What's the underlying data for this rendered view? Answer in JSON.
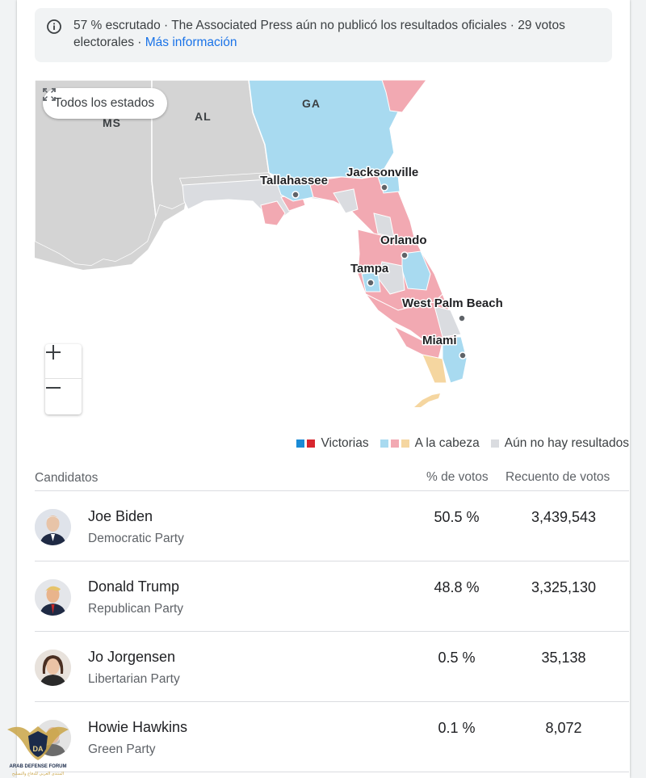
{
  "notice": {
    "text": "57 % escrutado · The Associated Press aún no publicó los resultados oficiales · 29 votos electorales · ",
    "link": "Más información",
    "icon": "info-icon"
  },
  "map": {
    "all_states_label": "Todos los estados",
    "states": [
      "MS",
      "AL",
      "GA"
    ],
    "cities": [
      "Tallahassee",
      "Jacksonville",
      "Orlando",
      "Tampa",
      "West Palm Beach",
      "Miami"
    ],
    "colors": {
      "dem_win": "#1a8bd6",
      "rep_win": "#d8262e",
      "dem_lead": "#a8daf0",
      "rep_lead": "#f2a9b2",
      "other_lead": "#f5d6a0",
      "no_results": "#dadce0",
      "neighbor": "#d4d4d4"
    }
  },
  "legend": {
    "wins": "Victorias",
    "leading": "A la cabeza",
    "no_results": "Aún no hay resultados"
  },
  "table": {
    "headers": {
      "candidates": "Candidatos",
      "pct": "% de votos",
      "votes": "Recuento de votos"
    },
    "rows": [
      {
        "name": "Joe Biden",
        "party": "Democratic Party",
        "pct": "50.5 %",
        "votes": "3,439,543"
      },
      {
        "name": "Donald Trump",
        "party": "Republican Party",
        "pct": "48.8 %",
        "votes": "3,325,130"
      },
      {
        "name": "Jo Jorgensen",
        "party": "Libertarian Party",
        "pct": "0.5 %",
        "votes": "35,138"
      },
      {
        "name": "Howie Hawkins",
        "party": "Green Party",
        "pct": "0.1 %",
        "votes": "8,072"
      }
    ]
  },
  "watermark": {
    "initials": "DA",
    "line1": "ARAB DEFENSE FORUM",
    "line2": "المنتدى العربي للدفاع والتسليح"
  }
}
